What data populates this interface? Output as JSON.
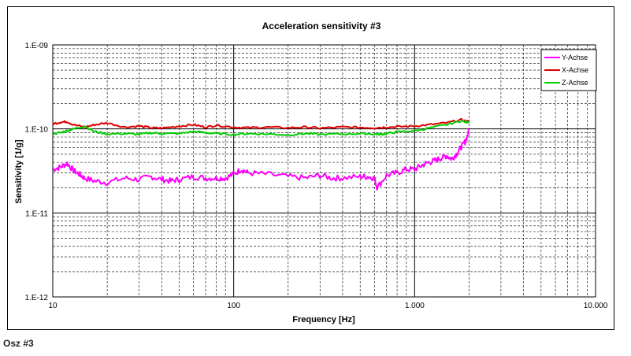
{
  "caption": "Osz #3",
  "chart_data": {
    "type": "line",
    "title": "Acceleration sensitivity #3",
    "xlabel": "Frequency [Hz]",
    "ylabel": "Sensitivity [1/g]",
    "x_scale": "log",
    "y_scale": "log",
    "xlim": [
      10,
      10000
    ],
    "ylim": [
      1e-12,
      1e-09
    ],
    "grid": true,
    "legend_position": "top-right",
    "x_tick_labels": [
      "10",
      "100",
      "1.000",
      "10.000"
    ],
    "y_tick_labels": [
      "1.E-12",
      "1.E-11",
      "1.E-10",
      "1.E-09"
    ],
    "series": [
      {
        "name": "Y-Achse",
        "color": "#ff00ff",
        "x": [
          10,
          11,
          12,
          13,
          14,
          15,
          17,
          20,
          25,
          30,
          35,
          40,
          45,
          50,
          60,
          70,
          80,
          90,
          100,
          110,
          120,
          150,
          200,
          250,
          300,
          350,
          400,
          500,
          550,
          600,
          620,
          700,
          800,
          900,
          1000,
          1100,
          1200,
          1300,
          1400,
          1500,
          1600,
          1700,
          1800,
          1900,
          2000
        ],
        "values": [
          3.3e-11,
          3.5e-11,
          3.9e-11,
          3.2e-11,
          2.9e-11,
          2.6e-11,
          2.4e-11,
          2.3e-11,
          2.6e-11,
          2.5e-11,
          2.7e-11,
          2.5e-11,
          2.4e-11,
          2.5e-11,
          2.7e-11,
          2.6e-11,
          2.6e-11,
          2.6e-11,
          2.9e-11,
          3.3e-11,
          3e-11,
          2.9e-11,
          2.7e-11,
          2.6e-11,
          2.8e-11,
          2.6e-11,
          2.6e-11,
          2.7e-11,
          2.7e-11,
          2.6e-11,
          2e-11,
          2.8e-11,
          3e-11,
          3.3e-11,
          3.3e-11,
          3.7e-11,
          4e-11,
          4.2e-11,
          4.5e-11,
          4.8e-11,
          4.4e-11,
          5e-11,
          6e-11,
          7e-11,
          9.5e-11
        ]
      },
      {
        "name": "X-Achse",
        "color": "#e00000",
        "x": [
          10,
          11,
          12,
          13,
          15,
          17,
          20,
          25,
          30,
          35,
          40,
          50,
          60,
          70,
          80,
          100,
          120,
          150,
          200,
          250,
          300,
          400,
          500,
          600,
          700,
          800,
          1000,
          1200,
          1500,
          1800,
          2000
        ],
        "values": [
          1.15e-10,
          1.2e-10,
          1.22e-10,
          1.12e-10,
          1.05e-10,
          1.12e-10,
          1.18e-10,
          1.05e-10,
          1.08e-10,
          1.03e-10,
          1.02e-10,
          1.08e-10,
          1.12e-10,
          1.05e-10,
          1.1e-10,
          1.05e-10,
          1.03e-10,
          1.05e-10,
          1.03e-10,
          1.05e-10,
          1.02e-10,
          1.05e-10,
          1.04e-10,
          1.03e-10,
          1.05e-10,
          1.06e-10,
          1.08e-10,
          1.12e-10,
          1.18e-10,
          1.28e-10,
          1.22e-10
        ]
      },
      {
        "name": "Z-Achse",
        "color": "#00cc00",
        "x": [
          10,
          11,
          12,
          13,
          15,
          17,
          20,
          25,
          30,
          35,
          40,
          50,
          60,
          70,
          80,
          100,
          120,
          150,
          200,
          250,
          300,
          400,
          500,
          600,
          650,
          700,
          800,
          1000,
          1200,
          1500,
          1800,
          2000
        ],
        "values": [
          8.8e-11,
          9e-11,
          9.5e-11,
          1e-10,
          1.08e-10,
          9.3e-11,
          8.7e-11,
          8.8e-11,
          8.6e-11,
          9e-11,
          8.8e-11,
          8.8e-11,
          9.3e-11,
          9e-11,
          8.8e-11,
          8.6e-11,
          8.8e-11,
          8.7e-11,
          8.5e-11,
          8.8e-11,
          8.6e-11,
          8.7e-11,
          8.8e-11,
          8.7e-11,
          8.6e-11,
          8.8e-11,
          9.2e-11,
          9.5e-11,
          1.02e-10,
          1.12e-10,
          1.25e-10,
          1.18e-10
        ]
      }
    ]
  }
}
